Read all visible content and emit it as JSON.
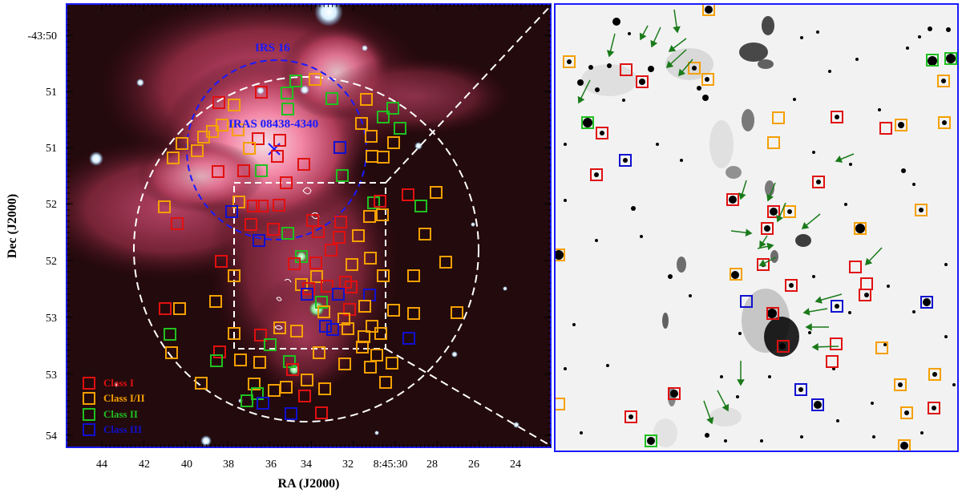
{
  "axes": {
    "xlabel": "RA (J2000)",
    "ylabel": "Dec (J2000)",
    "ra_ticks": [
      "44",
      "42",
      "40",
      "38",
      "36",
      "34",
      "32",
      "8:45:30",
      "28",
      "26",
      "24"
    ],
    "dec_ticks": [
      "-43:50",
      "51",
      "51",
      "52",
      "52",
      "53",
      "53",
      "54"
    ]
  },
  "labels": {
    "irs16": "IRS 16",
    "iras": "IRAS 08438-4340"
  },
  "legend": [
    {
      "label": "Class I",
      "color": "#e01010"
    },
    {
      "label": "Class I/II",
      "color": "#f5a000"
    },
    {
      "label": "Class II",
      "color": "#20c020"
    },
    {
      "label": "Class III",
      "color": "#1010d0"
    }
  ],
  "colors": {
    "frame": "#1a1aff",
    "irs_circle": "#1a1aff",
    "field_circle": "#ffffff",
    "outflow_arrow": "#1a7a1a"
  }
}
